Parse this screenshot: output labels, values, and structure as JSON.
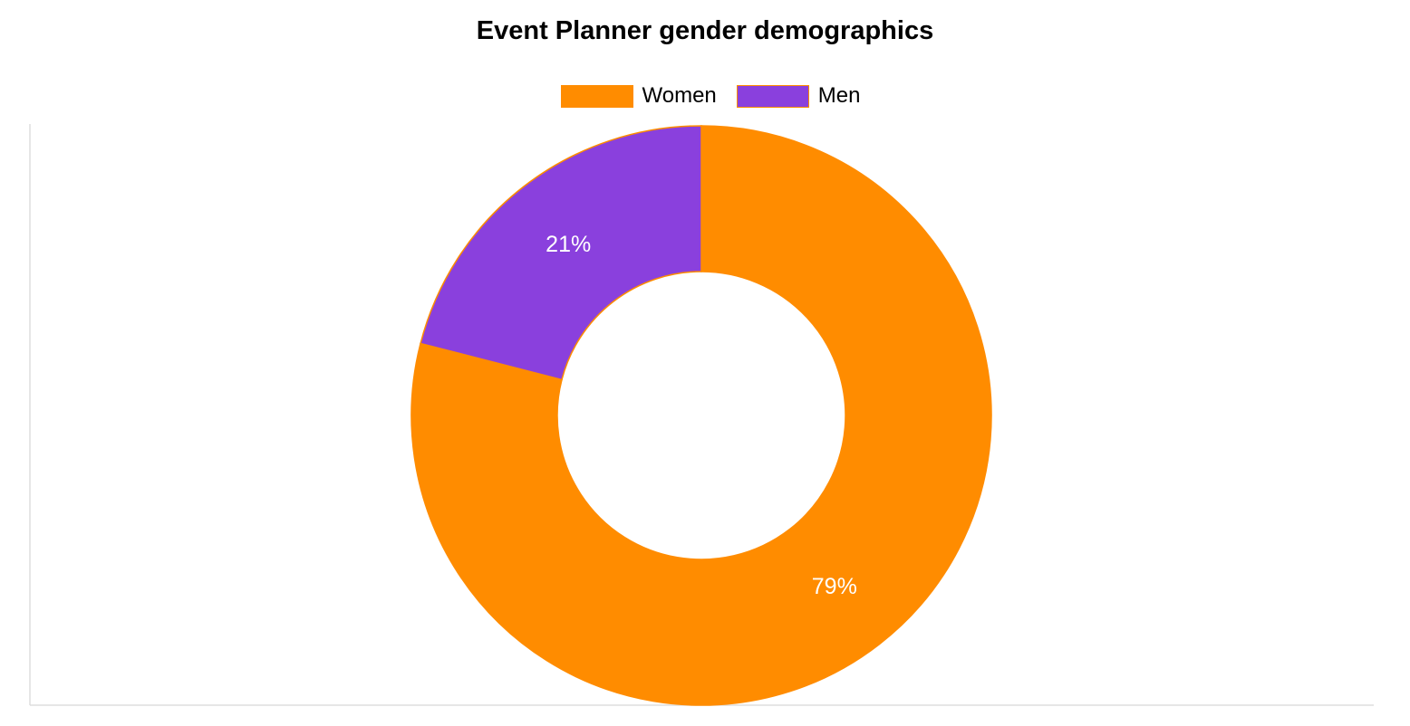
{
  "chart_data": {
    "type": "pie",
    "variant": "doughnut",
    "title": "Event Planner gender demographics",
    "categories": [
      "Women",
      "Men"
    ],
    "values": [
      79,
      21
    ],
    "value_labels": [
      "79%",
      "21%"
    ],
    "colors": [
      "#ff8c00",
      "#8a40dd"
    ],
    "slice_border_color": "#ff8c00",
    "label_color": "#ffffff",
    "legend_position": "top",
    "start_angle_deg": 0,
    "direction": "clockwise"
  }
}
